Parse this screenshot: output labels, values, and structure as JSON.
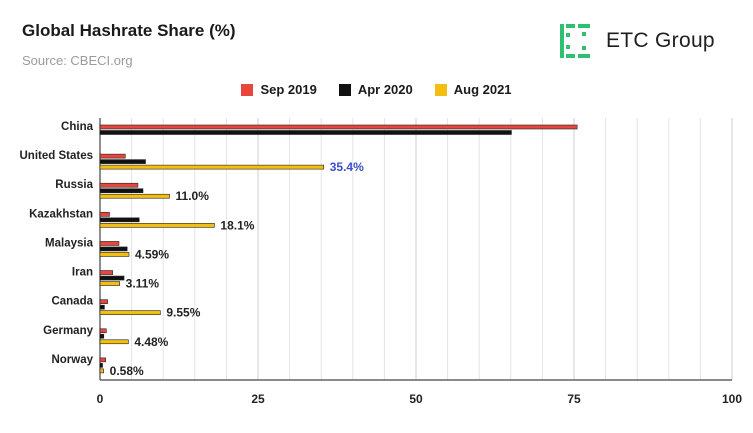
{
  "header": {
    "title": "Global Hashrate Share (%)",
    "subtitle": "Source: CBECI.org"
  },
  "brand": {
    "name": "ETC Group",
    "logo_color": "#2fbf71",
    "icon": "etc-group-logo-icon"
  },
  "chart_data": {
    "type": "bar",
    "orientation": "horizontal",
    "title": "Global Hashrate Share (%)",
    "categories": [
      "China",
      "United States",
      "Russia",
      "Kazakhstan",
      "Malaysia",
      "Iran",
      "Canada",
      "Germany",
      "Norway"
    ],
    "series": [
      {
        "name": "Sep 2019",
        "color": "#e8453c",
        "values": [
          75.5,
          4.0,
          6.0,
          1.5,
          3.0,
          2.0,
          1.2,
          1.0,
          0.9
        ]
      },
      {
        "name": "Apr 2020",
        "color": "#111111",
        "values": [
          65.1,
          7.2,
          6.8,
          6.2,
          4.3,
          3.8,
          0.7,
          0.6,
          0.4
        ]
      },
      {
        "name": "Aug 2021",
        "color": "#f3be0f",
        "values": [
          0,
          35.4,
          11.0,
          18.1,
          4.59,
          3.11,
          9.55,
          4.48,
          0.58
        ]
      }
    ],
    "data_labels": {
      "series": "Aug 2021",
      "labels": [
        "",
        "35.4%",
        "11.0%",
        "18.1%",
        "4.59%",
        "3.11%",
        "9.55%",
        "4.48%",
        "0.58%"
      ],
      "highlight_index": 1,
      "highlight_color": "#3a4fc9"
    },
    "xlim": [
      0,
      100
    ],
    "xticks": [
      0,
      25,
      50,
      75,
      100
    ],
    "minor_gridlines": true,
    "legend_position": "top-center"
  }
}
